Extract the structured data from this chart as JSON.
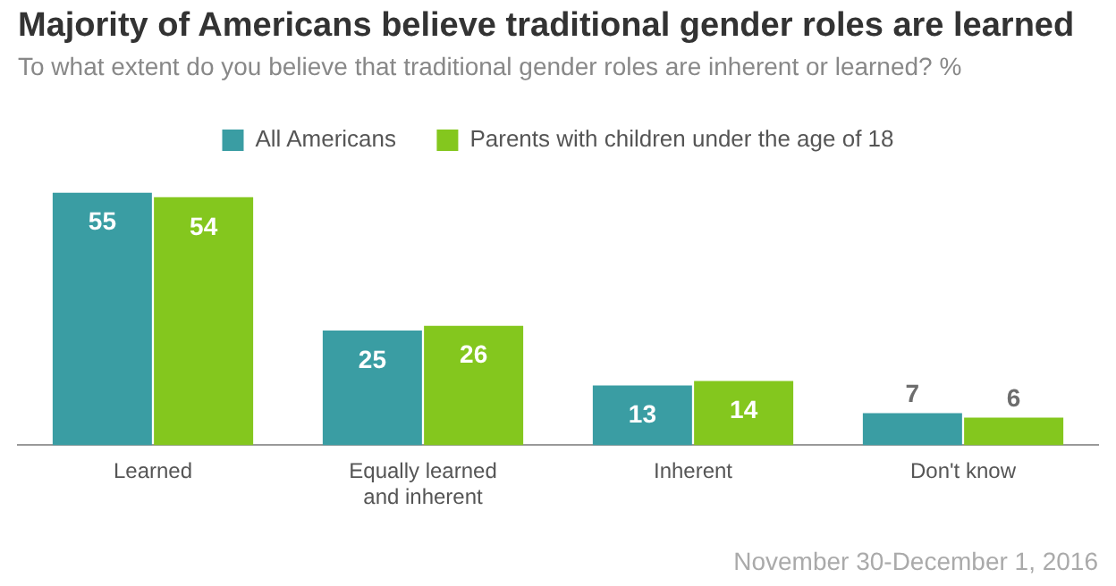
{
  "chart_data": {
    "type": "bar",
    "title": "Majority of Americans believe traditional gender roles are learned",
    "subtitle": "To what extent do you believe that traditional gender roles are inherent or learned? %",
    "categories": [
      "Learned",
      "Equally learned and inherent",
      "Inherent",
      "Don't know"
    ],
    "series": [
      {
        "name": "All Americans",
        "color": "#3a9da3",
        "values": [
          55,
          25,
          13,
          7
        ]
      },
      {
        "name": "Parents with children under the age of 18",
        "color": "#84c71e",
        "values": [
          54,
          26,
          14,
          6
        ]
      }
    ],
    "data_labels": true,
    "legend": "top",
    "grid": false,
    "annotations": [
      "November 30-December 1, 2016"
    ]
  }
}
